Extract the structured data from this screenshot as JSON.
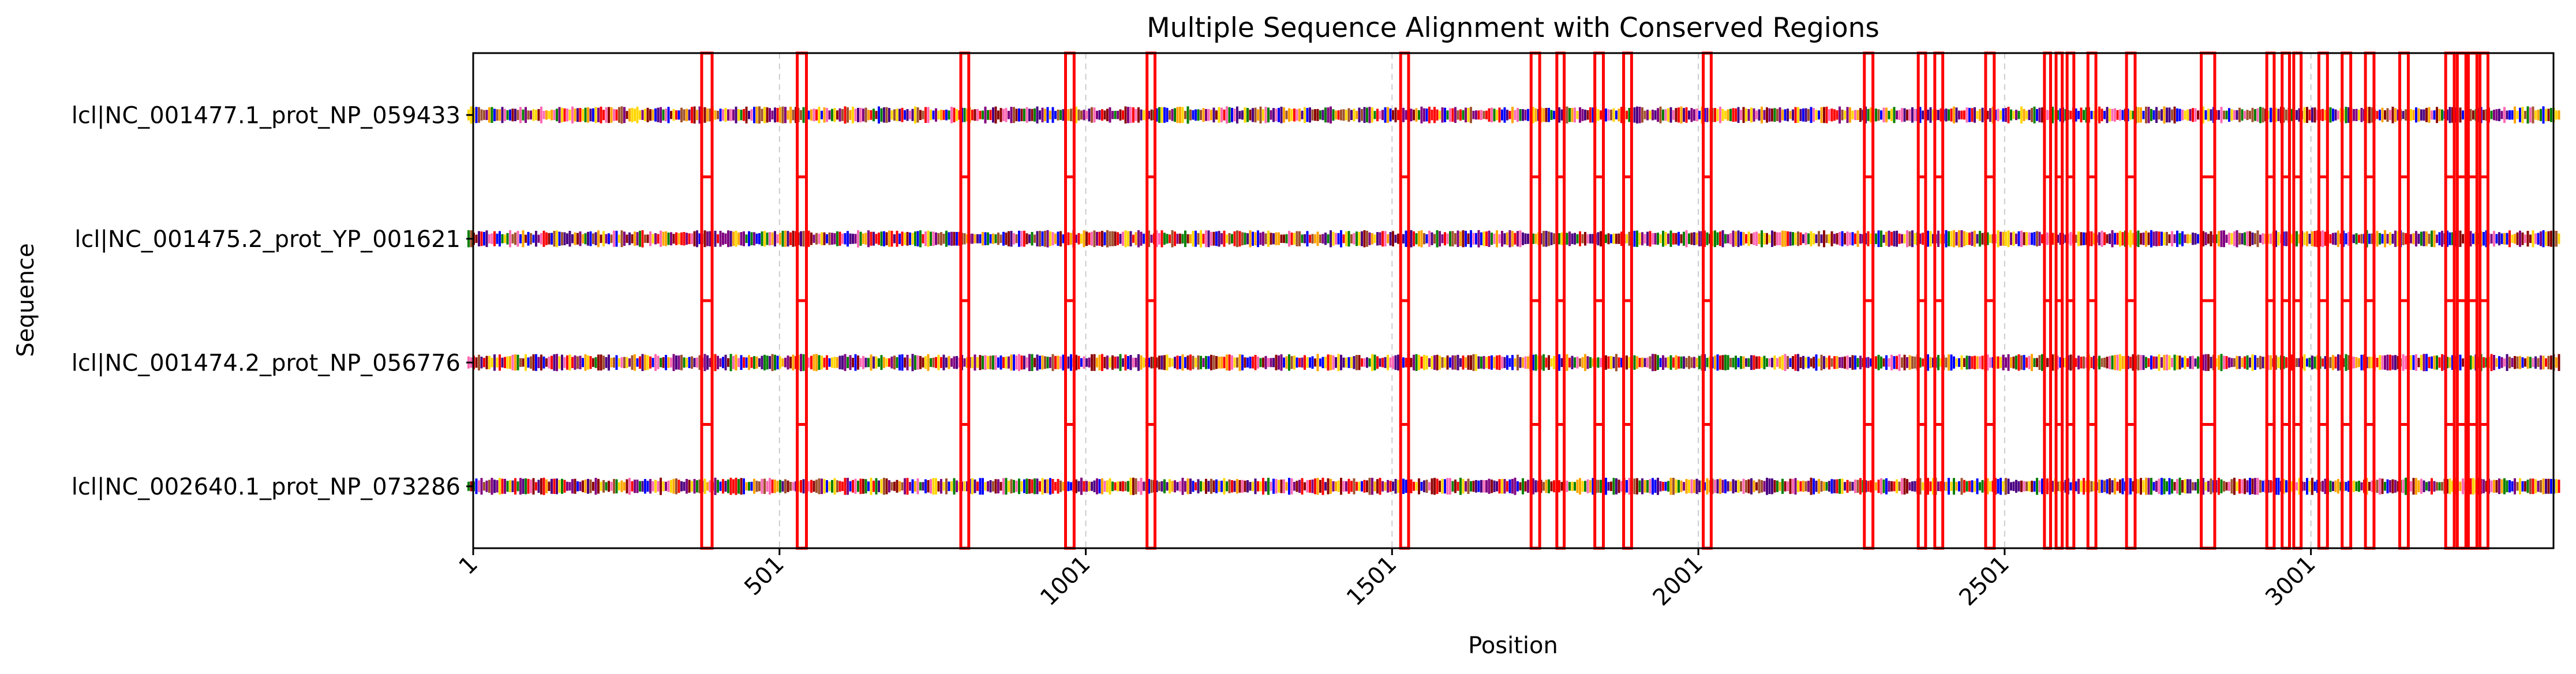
{
  "chart_data": {
    "type": "table",
    "title": "Multiple Sequence Alignment with Conserved Regions",
    "xlabel": "Position",
    "ylabel": "Sequence",
    "xlim": [
      1,
      3397
    ],
    "sequence_length": 3397,
    "x_ticks": [
      "1",
      "501",
      "1001",
      "1501",
      "2001",
      "2501",
      "3001"
    ],
    "x_tick_values": [
      1,
      501,
      1001,
      1501,
      2001,
      2501,
      3001
    ],
    "sequences": [
      "lcl|NC_001477.1_prot_NP_059433",
      "lcl|NC_001475.2_prot_YP_001621",
      "lcl|NC_001474.2_prot_NP_056776",
      "lcl|NC_002640.1_prot_NP_073286"
    ],
    "conserved_regions": [
      [
        374,
        391
      ],
      [
        530,
        545
      ],
      [
        797,
        810
      ],
      [
        968,
        982
      ],
      [
        1101,
        1114
      ],
      [
        1515,
        1528
      ],
      [
        1728,
        1742
      ],
      [
        1770,
        1782
      ],
      [
        1832,
        1846
      ],
      [
        1879,
        1892
      ],
      [
        2009,
        2022
      ],
      [
        2272,
        2286
      ],
      [
        2360,
        2372
      ],
      [
        2387,
        2400
      ],
      [
        2470,
        2484
      ],
      [
        2566,
        2576
      ],
      [
        2585,
        2595
      ],
      [
        2603,
        2614
      ],
      [
        2637,
        2650
      ],
      [
        2700,
        2714
      ],
      [
        2822,
        2844
      ],
      [
        2929,
        2941
      ],
      [
        2954,
        2966
      ],
      [
        2973,
        2985
      ],
      [
        3014,
        3028
      ],
      [
        3052,
        3066
      ],
      [
        3090,
        3104
      ],
      [
        3146,
        3160
      ],
      [
        3221,
        3235
      ],
      [
        3240,
        3254
      ],
      [
        3258,
        3272
      ],
      [
        3277,
        3290
      ]
    ],
    "residue_colors": [
      "#ff0000",
      "#0000ff",
      "#ffa500",
      "#8b0000",
      "#ff69b4",
      "#800080",
      "#ffd700",
      "#a0522d",
      "#008000",
      "#4b0082"
    ],
    "region_color": "#ff0000",
    "grid": "x-dashed",
    "legend": "none"
  }
}
